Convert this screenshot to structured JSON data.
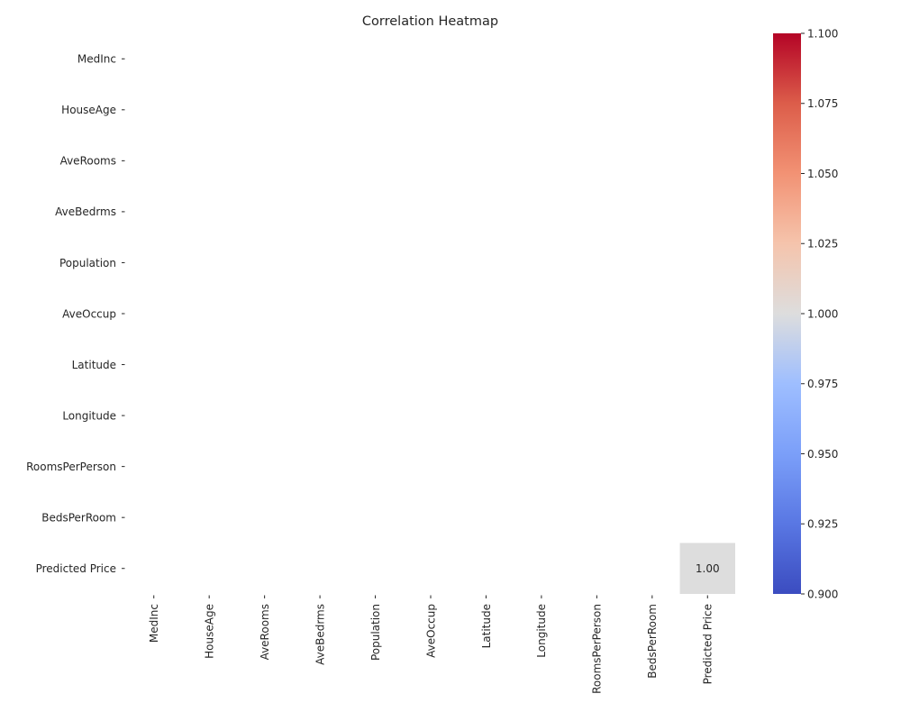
{
  "chart_data": {
    "type": "heatmap",
    "title": "Correlation Heatmap",
    "xlabel": "",
    "ylabel": "",
    "rows": [
      "MedInc",
      "HouseAge",
      "AveRooms",
      "AveBedrms",
      "Population",
      "AveOccup",
      "Latitude",
      "Longitude",
      "RoomsPerPerson",
      "BedsPerRoom",
      "Predicted Price"
    ],
    "columns": [
      "MedInc",
      "HouseAge",
      "AveRooms",
      "AveBedrms",
      "Population",
      "AveOccup",
      "Latitude",
      "Longitude",
      "RoomsPerPerson",
      "BedsPerRoom",
      "Predicted Price"
    ],
    "cells": [
      {
        "row": "Predicted Price",
        "column": "Predicted Price",
        "value": 1.0,
        "label": "1.00"
      }
    ],
    "colormap": "coolwarm",
    "color_low": "#3b4cc0",
    "color_mid": "#dddddd",
    "color_high": "#b40426",
    "colorbar": {
      "min": 0.9,
      "max": 1.1,
      "ticks": [
        "0.900",
        "0.925",
        "0.950",
        "0.975",
        "1.000",
        "1.025",
        "1.050",
        "1.075",
        "1.100"
      ]
    }
  }
}
